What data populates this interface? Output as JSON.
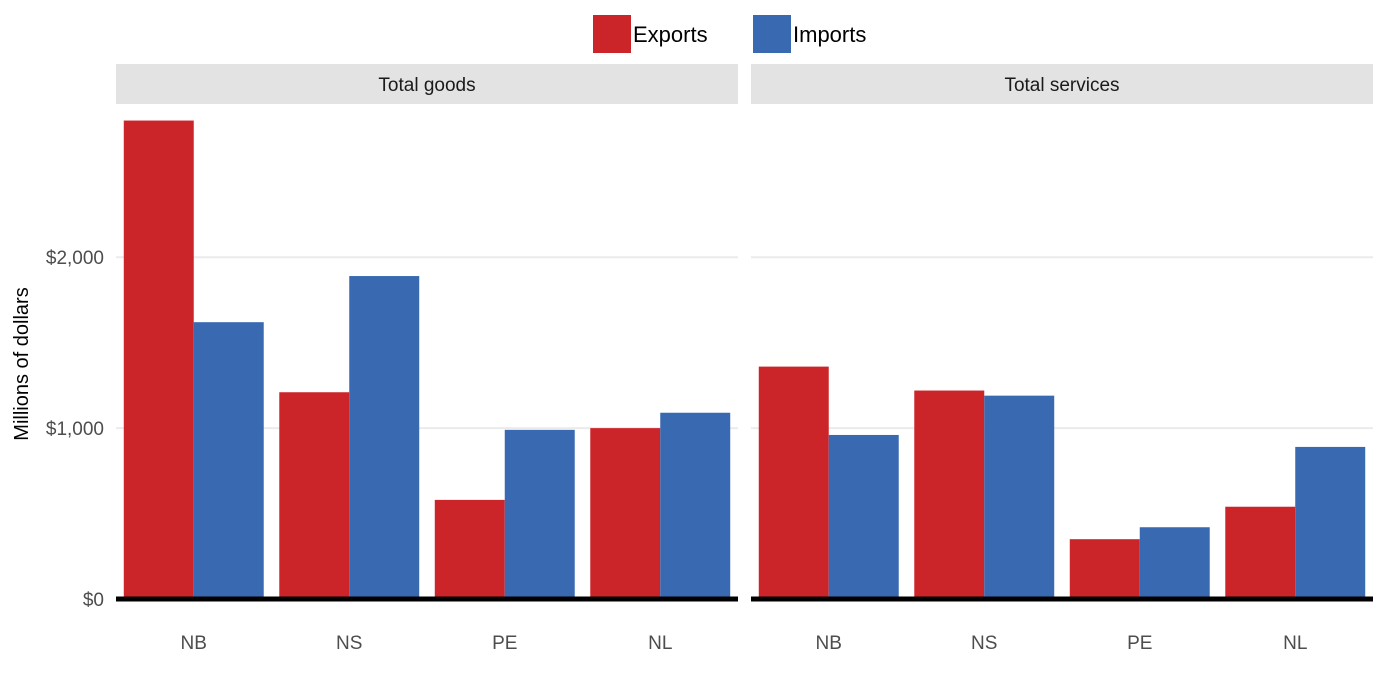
{
  "chart_data": {
    "type": "bar",
    "ylabel": "Millions of dollars",
    "xlabel": "",
    "ylim": [
      0,
      2850
    ],
    "y_ticks": [
      0,
      1000,
      2000
    ],
    "y_tick_labels": [
      "$0",
      "$1,000",
      "$2,000"
    ],
    "grid": "horizontal",
    "legend_position": "top",
    "categories": [
      "NB",
      "NS",
      "PE",
      "NL"
    ],
    "series_colors": {
      "Exports": "#CC2529",
      "Imports": "#3969B1"
    },
    "legend": [
      {
        "name": "Exports",
        "color": "#CC2529"
      },
      {
        "name": "Imports",
        "color": "#3969B1"
      }
    ],
    "panels": [
      {
        "title": "Total goods",
        "series": [
          {
            "name": "Exports",
            "values": [
              2800,
              1210,
              580,
              1000
            ]
          },
          {
            "name": "Imports",
            "values": [
              1620,
              1890,
              990,
              1090
            ]
          }
        ]
      },
      {
        "title": "Total services",
        "series": [
          {
            "name": "Exports",
            "values": [
              1360,
              1220,
              350,
              540
            ]
          },
          {
            "name": "Imports",
            "values": [
              960,
              1190,
              420,
              890
            ]
          }
        ]
      }
    ]
  }
}
